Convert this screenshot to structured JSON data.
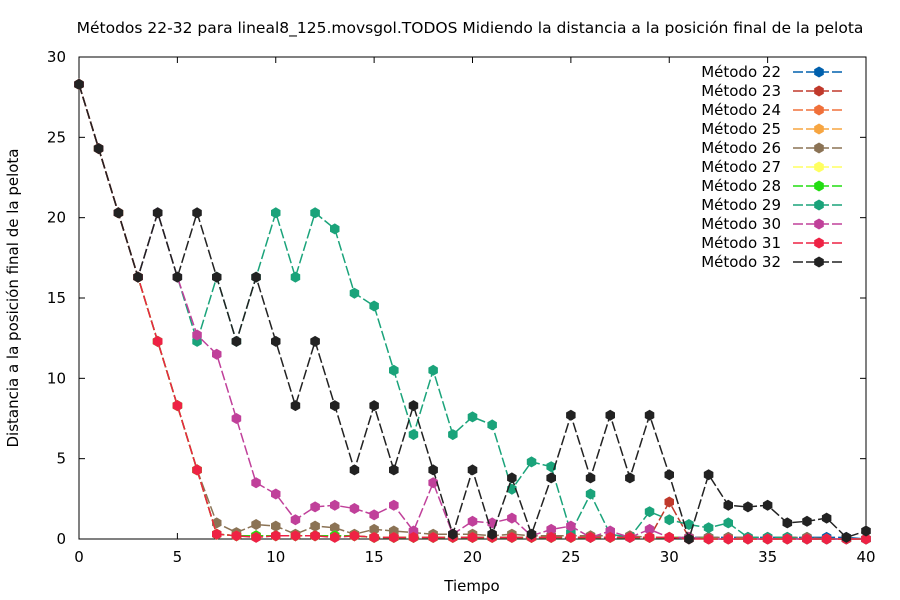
{
  "chart_data": {
    "type": "line",
    "title": "Métodos 22-32 para lineal8_125.movsgol.TODOS Midiendo la distancia a la posición final de la pelota",
    "xlabel": "Tiempo",
    "ylabel": "Distancia a la posición final de la pelota",
    "xlim": [
      0,
      40
    ],
    "ylim": [
      0,
      30
    ],
    "xticks": [
      0,
      5,
      10,
      15,
      20,
      25,
      30,
      35,
      40
    ],
    "yticks": [
      0,
      5,
      10,
      15,
      20,
      25,
      30
    ],
    "grid": false,
    "legend_position": "top-right",
    "series": [
      {
        "name": "Método 22",
        "color": "#0060ad",
        "x": [
          0,
          1,
          2,
          3,
          4,
          5,
          6,
          7,
          8,
          9,
          10,
          11,
          12,
          13,
          14,
          15,
          16,
          17,
          18,
          19,
          20,
          21,
          22,
          23,
          24,
          25,
          26,
          27,
          28,
          29,
          30,
          31,
          32,
          33,
          34,
          35,
          36,
          37,
          38,
          39,
          40
        ],
        "y": [
          28.3,
          24.3,
          20.3,
          16.3,
          12.3,
          8.3,
          4.3,
          0.3,
          0.2,
          0.2,
          0.2,
          0.2,
          0.2,
          0.2,
          0.2,
          0.1,
          0.1,
          0.1,
          0.1,
          0.1,
          0.1,
          0.1,
          0.1,
          0.1,
          0.1,
          0.1,
          0.1,
          0.1,
          0.1,
          0.1,
          0.1,
          0.1,
          0.1,
          0.1,
          0.1,
          0.1,
          0.1,
          0.1,
          0.1,
          0.1,
          0.0
        ]
      },
      {
        "name": "Método 23",
        "color": "#c0392b",
        "x": [
          0,
          1,
          2,
          3,
          4,
          5,
          6,
          7,
          8,
          9,
          10,
          11,
          12,
          13,
          14,
          15,
          16,
          17,
          18,
          19,
          20,
          21,
          22,
          23,
          24,
          25,
          26,
          27,
          28,
          29,
          30,
          31,
          32,
          33,
          34,
          35,
          36,
          37,
          38,
          39,
          40
        ],
        "y": [
          28.3,
          24.3,
          20.3,
          16.3,
          12.3,
          8.3,
          4.3,
          0.3,
          0.2,
          0.2,
          0.2,
          0.2,
          0.2,
          0.2,
          0.2,
          0.1,
          0.1,
          0.1,
          0.1,
          0.1,
          0.1,
          0.1,
          0.1,
          0.1,
          0.1,
          0.1,
          0.1,
          0.1,
          0.1,
          0.1,
          2.3,
          0.1,
          0.0,
          0.0,
          0.0,
          0.0,
          0.0,
          0.0,
          0.0,
          0.0,
          0.0
        ]
      },
      {
        "name": "Método 24",
        "color": "#f0703a",
        "x": [
          0,
          1,
          2,
          3,
          4,
          5,
          6,
          7,
          8,
          9,
          10,
          11,
          12,
          13,
          14,
          15,
          16,
          17,
          18,
          19,
          20,
          21,
          22,
          23,
          24,
          25,
          26,
          27,
          28,
          29,
          30,
          31,
          32,
          33,
          34,
          35,
          36,
          37,
          38,
          39,
          40
        ],
        "y": [
          28.3,
          24.3,
          20.3,
          16.3,
          12.3,
          8.3,
          4.3,
          0.3,
          0.2,
          0.2,
          0.2,
          0.2,
          0.2,
          0.2,
          0.2,
          0.1,
          0.1,
          0.1,
          0.1,
          0.1,
          0.1,
          0.1,
          0.1,
          0.1,
          0.1,
          0.1,
          0.1,
          0.1,
          0.1,
          0.1,
          0.1,
          0.1,
          0.0,
          0.0,
          0.0,
          0.0,
          0.0,
          0.0,
          0.0,
          0.0,
          0.0
        ]
      },
      {
        "name": "Método 25",
        "color": "#f7a541",
        "x": [
          0,
          1,
          2,
          3,
          4,
          5,
          6,
          7,
          8,
          9,
          10,
          11,
          12,
          13,
          14,
          15,
          16,
          17,
          18,
          19,
          20,
          21,
          22,
          23,
          24,
          25,
          26,
          27,
          28,
          29,
          30,
          31,
          32,
          33,
          34,
          35,
          36,
          37,
          38,
          39,
          40
        ],
        "y": [
          28.3,
          24.3,
          20.3,
          16.3,
          12.3,
          8.3,
          4.3,
          0.3,
          0.2,
          0.2,
          0.2,
          0.2,
          0.2,
          0.2,
          0.2,
          0.1,
          0.1,
          0.1,
          0.1,
          0.1,
          0.1,
          0.1,
          0.1,
          0.1,
          0.1,
          0.1,
          0.1,
          0.1,
          0.1,
          0.1,
          0.1,
          0.1,
          0.0,
          0.0,
          0.0,
          0.0,
          0.0,
          0.0,
          0.0,
          0.0,
          0.0
        ]
      },
      {
        "name": "Método 26",
        "color": "#8b7355",
        "x": [
          0,
          1,
          2,
          3,
          4,
          5,
          6,
          7,
          8,
          9,
          10,
          11,
          12,
          13,
          14,
          15,
          16,
          17,
          18,
          19,
          20,
          21,
          22,
          23,
          24,
          25,
          26,
          27,
          28,
          29,
          30,
          31,
          32,
          33,
          34,
          35,
          36,
          37,
          38,
          39,
          40
        ],
        "y": [
          28.3,
          24.3,
          20.3,
          16.3,
          12.3,
          8.3,
          4.3,
          1.0,
          0.4,
          0.9,
          0.8,
          0.3,
          0.8,
          0.7,
          0.3,
          0.6,
          0.5,
          0.4,
          0.3,
          0.3,
          0.3,
          0.2,
          0.3,
          0.2,
          0.2,
          0.2,
          0.2,
          0.2,
          0.2,
          0.1,
          0.1,
          0.1,
          0.1,
          0.1,
          0.1,
          0.1,
          0.1,
          0.1,
          0.0,
          0.0,
          0.0
        ]
      },
      {
        "name": "Método 27",
        "color": "#ffff60",
        "x": [
          0,
          1,
          2,
          3,
          4,
          5,
          6,
          7,
          8,
          9,
          10,
          11,
          12,
          13,
          14,
          15,
          16,
          17,
          18,
          19,
          20,
          21,
          22,
          23,
          24,
          25,
          26,
          27,
          28,
          29,
          30,
          31,
          32,
          33,
          34,
          35,
          36,
          37,
          38,
          39,
          40
        ],
        "y": [
          28.3,
          24.3,
          20.3,
          16.3,
          12.3,
          8.3,
          4.3,
          0.3,
          0.2,
          0.2,
          0.2,
          0.2,
          0.2,
          0.2,
          0.2,
          0.1,
          0.1,
          0.1,
          0.1,
          0.1,
          0.1,
          0.1,
          0.1,
          0.1,
          0.1,
          0.1,
          0.1,
          0.1,
          0.1,
          0.1,
          0.1,
          0.1,
          0.0,
          0.0,
          0.0,
          0.0,
          0.0,
          0.0,
          0.0,
          0.0,
          0.0
        ]
      },
      {
        "name": "Método 28",
        "color": "#22dd11",
        "x": [
          0,
          1,
          2,
          3,
          4,
          5,
          6,
          7,
          8,
          9,
          10,
          11,
          12,
          13,
          14,
          15,
          16,
          17,
          18,
          19,
          20,
          21,
          22,
          23,
          24,
          25,
          26,
          27,
          28,
          29,
          30,
          31,
          32,
          33,
          34,
          35,
          36,
          37,
          38,
          39,
          40
        ],
        "y": [
          28.3,
          24.3,
          20.3,
          16.3,
          12.3,
          8.3,
          4.3,
          0.3,
          0.2,
          0.2,
          0.2,
          0.2,
          0.2,
          0.2,
          0.2,
          0.1,
          0.1,
          0.1,
          0.1,
          0.1,
          0.1,
          0.1,
          0.1,
          0.1,
          0.1,
          0.1,
          0.1,
          0.1,
          0.1,
          0.1,
          0.1,
          0.1,
          0.0,
          0.0,
          0.0,
          0.0,
          0.0,
          0.0,
          0.0,
          0.0,
          0.0
        ]
      },
      {
        "name": "Método 29",
        "color": "#1aa37a",
        "x": [
          0,
          1,
          2,
          3,
          4,
          5,
          6,
          7,
          8,
          9,
          10,
          11,
          12,
          13,
          14,
          15,
          16,
          17,
          18,
          19,
          20,
          21,
          22,
          23,
          24,
          25,
          26,
          27,
          28,
          29,
          30,
          31,
          32,
          33,
          34,
          35,
          36,
          37,
          38,
          39,
          40
        ],
        "y": [
          28.3,
          24.3,
          20.3,
          16.3,
          20.3,
          16.3,
          12.3,
          16.3,
          12.3,
          16.3,
          20.3,
          16.3,
          20.3,
          19.3,
          15.3,
          14.5,
          10.5,
          6.5,
          10.5,
          6.5,
          7.6,
          7.1,
          3.1,
          4.8,
          4.5,
          0.4,
          2.8,
          0.3,
          0.1,
          1.7,
          1.2,
          0.9,
          0.7,
          1.0,
          0.1,
          0.1,
          0.1,
          0.0,
          0.0,
          0.0,
          0.0
        ]
      },
      {
        "name": "Método 30",
        "color": "#c0409a",
        "x": [
          0,
          1,
          2,
          3,
          4,
          5,
          6,
          7,
          8,
          9,
          10,
          11,
          12,
          13,
          14,
          15,
          16,
          17,
          18,
          19,
          20,
          21,
          22,
          23,
          24,
          25,
          26,
          27,
          28,
          29,
          30,
          31,
          32,
          33,
          34,
          35,
          36,
          37,
          38,
          39,
          40
        ],
        "y": [
          28.3,
          24.3,
          20.3,
          16.3,
          20.3,
          16.3,
          12.7,
          11.5,
          7.5,
          3.5,
          2.8,
          1.2,
          2.0,
          2.1,
          1.9,
          1.5,
          2.1,
          0.5,
          3.5,
          0.3,
          1.1,
          1.0,
          1.3,
          0.2,
          0.6,
          0.8,
          0.1,
          0.5,
          0.1,
          0.6,
          0.1,
          0.1,
          0.0,
          0.0,
          0.0,
          0.0,
          0.0,
          0.0,
          0.0,
          0.0,
          0.0
        ]
      },
      {
        "name": "Método 31",
        "color": "#ee2244",
        "x": [
          0,
          1,
          2,
          3,
          4,
          5,
          6,
          7,
          8,
          9,
          10,
          11,
          12,
          13,
          14,
          15,
          16,
          17,
          18,
          19,
          20,
          21,
          22,
          23,
          24,
          25,
          26,
          27,
          28,
          29,
          30,
          31,
          32,
          33,
          34,
          35,
          36,
          37,
          38,
          39,
          40
        ],
        "y": [
          28.3,
          24.3,
          20.3,
          16.3,
          12.3,
          8.3,
          4.3,
          0.3,
          0.2,
          0.1,
          0.2,
          0.2,
          0.2,
          0.1,
          0.2,
          0.1,
          0.1,
          0.1,
          0.1,
          0.1,
          0.1,
          0.1,
          0.1,
          0.1,
          0.1,
          0.1,
          0.1,
          0.1,
          0.1,
          0.1,
          0.1,
          0.0,
          0.0,
          0.0,
          0.0,
          0.0,
          0.0,
          0.0,
          0.0,
          0.0,
          0.0
        ]
      },
      {
        "name": "Método 32",
        "color": "#222222",
        "x": [
          0,
          1,
          2,
          3,
          4,
          5,
          6,
          7,
          8,
          9,
          10,
          11,
          12,
          13,
          14,
          15,
          16,
          17,
          18,
          19,
          20,
          21,
          22,
          23,
          24,
          25,
          26,
          27,
          28,
          29,
          30,
          31,
          32,
          33,
          34,
          35,
          36,
          37,
          38,
          39,
          40
        ],
        "y": [
          28.3,
          24.3,
          20.3,
          16.3,
          20.3,
          16.3,
          20.3,
          16.3,
          12.3,
          16.3,
          12.3,
          8.3,
          12.3,
          8.3,
          4.3,
          8.3,
          4.3,
          8.3,
          4.3,
          0.3,
          4.3,
          0.3,
          3.8,
          0.3,
          3.8,
          7.7,
          3.8,
          7.7,
          3.8,
          7.7,
          4.0,
          0.0,
          4.0,
          2.1,
          2.0,
          2.1,
          1.0,
          1.1,
          1.3,
          0.1,
          0.5
        ]
      }
    ]
  }
}
